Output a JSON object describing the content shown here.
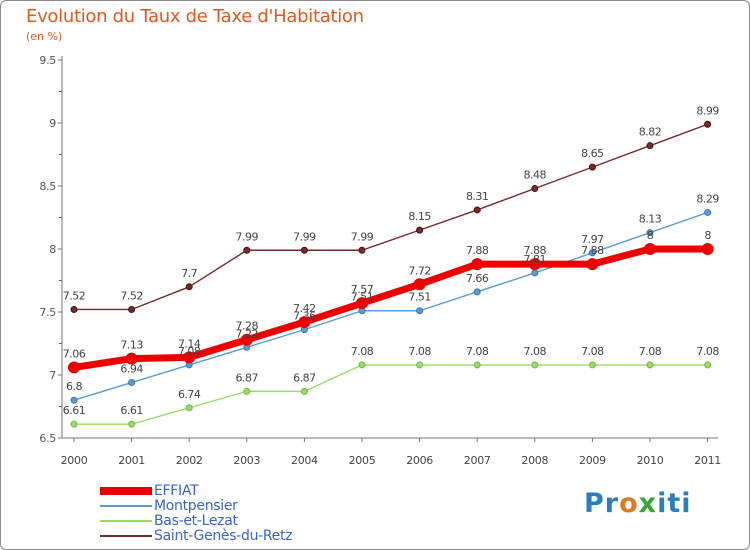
{
  "title": "Evolution du Taux de Taxe d'Habitation",
  "subtitle": "(en %)",
  "logo": {
    "text": "Proxiti",
    "colors": [
      "#2b7fc0",
      "#e07b1f",
      "#3aa63a"
    ]
  },
  "chart_data": {
    "type": "line",
    "title": "Evolution du Taux de Taxe d'Habitation",
    "ylabel": "(en %)",
    "xlabel": "",
    "categories": [
      "2000",
      "2001",
      "2002",
      "2003",
      "2004",
      "2005",
      "2006",
      "2007",
      "2008",
      "2009",
      "2010",
      "2011"
    ],
    "ylim": [
      6.5,
      9.5
    ],
    "yticks": [
      6.5,
      7,
      7.5,
      8,
      8.5,
      9,
      9.5
    ],
    "ytick_labels": [
      "6.5",
      "7",
      "7.5",
      "8",
      "8.5",
      "9",
      "9.5"
    ],
    "grid": false,
    "legend_position": "bottom-left",
    "series": [
      {
        "name": "EFFIAT",
        "color": "#ee0000",
        "values": [
          7.06,
          7.13,
          7.14,
          7.28,
          7.42,
          7.57,
          7.72,
          7.88,
          7.88,
          7.88,
          8,
          8
        ],
        "labels": [
          "7.06",
          "7.13",
          "7.14",
          "7.28",
          "7.42",
          "7.57",
          "7.72",
          "7.88",
          "7.88",
          "7.88",
          "8",
          "8"
        ]
      },
      {
        "name": "Montpensier",
        "color": "#5b9bd5",
        "values": [
          6.8,
          6.94,
          7.08,
          7.22,
          7.36,
          7.51,
          7.51,
          7.66,
          7.81,
          7.97,
          8.13,
          8.29
        ],
        "labels": [
          "6.8",
          "6.94",
          "7.08",
          "7.22",
          "7.36",
          "7.51",
          "7.51",
          "7.66",
          "7.81",
          "7.97",
          "8.13",
          "8.29"
        ]
      },
      {
        "name": "Bas-et-Lezat",
        "color": "#99dd66",
        "values": [
          6.61,
          6.61,
          6.74,
          6.87,
          6.87,
          7.08,
          7.08,
          7.08,
          7.08,
          7.08,
          7.08,
          7.08
        ],
        "labels": [
          "6.61",
          "6.61",
          "6.74",
          "6.87",
          "6.87",
          "7.08",
          "7.08",
          "7.08",
          "7.08",
          "7.08",
          "7.08",
          "7.08"
        ]
      },
      {
        "name": "Saint-Genès-du-Retz",
        "color": "#7a2a2a",
        "values": [
          7.52,
          7.52,
          7.7,
          7.99,
          7.99,
          7.99,
          8.15,
          8.31,
          8.48,
          8.65,
          8.82,
          8.99
        ],
        "labels": [
          "7.52",
          "7.52",
          "7.7",
          "7.99",
          "7.99",
          "7.99",
          "8.15",
          "8.31",
          "8.48",
          "8.65",
          "8.82",
          "8.99"
        ]
      }
    ]
  }
}
